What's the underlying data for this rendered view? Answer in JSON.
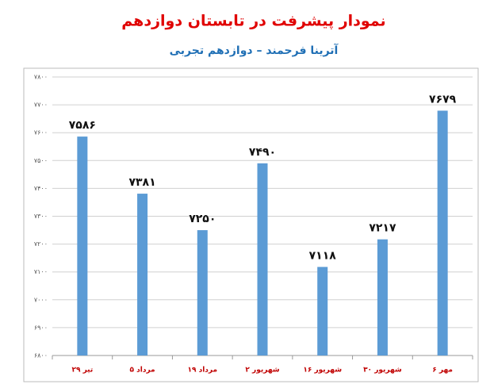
{
  "chart_data": {
    "type": "bar",
    "title": "نمودار پیشرفت در تابستان دوازدهم",
    "subtitle": "آترینا فرحمند – دوازدهم تجربی",
    "categories": [
      "۲۹ تیر",
      "۵ مرداد",
      "۱۹ مرداد",
      "۲ شهریور",
      "۱۶ شهریور",
      "۳۰ شهریور",
      "۶ مهر"
    ],
    "values": [
      7586,
      7381,
      7250,
      7490,
      7118,
      7217,
      7679
    ],
    "value_labels": [
      "۷۵۸۶",
      "۷۳۸۱",
      "۷۲۵۰",
      "۷۴۹۰",
      "۷۱۱۸",
      "۷۲۱۷",
      "۷۶۷۹"
    ],
    "color": "#5b9bd5",
    "ylim": [
      6800,
      7800
    ],
    "yticks": [
      {
        "value": 6800,
        "label": "۶۸۰۰"
      },
      {
        "value": 6900,
        "label": "۶۹۰۰"
      },
      {
        "value": 7000,
        "label": "۷۰۰۰"
      },
      {
        "value": 7100,
        "label": "۷۱۰۰"
      },
      {
        "value": 7200,
        "label": "۷۲۰۰"
      },
      {
        "value": 7300,
        "label": "۷۳۰۰"
      },
      {
        "value": 7400,
        "label": "۷۴۰۰"
      },
      {
        "value": 7500,
        "label": "۷۵۰۰"
      },
      {
        "value": 7600,
        "label": "۷۶۰۰"
      },
      {
        "value": 7700,
        "label": "۷۷۰۰"
      },
      {
        "value": 7800,
        "label": "۷۸۰۰"
      }
    ],
    "grid": true
  }
}
